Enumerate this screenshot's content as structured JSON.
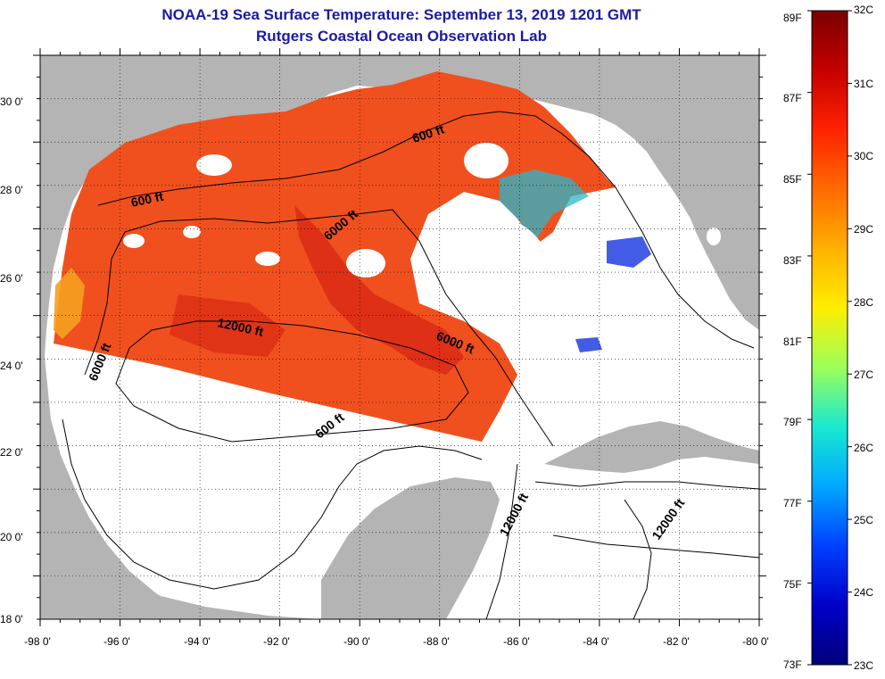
{
  "title": {
    "line1": "NOAA-19 Sea Surface Temperature:  September 13, 2019 1201 GMT",
    "line2": "Rutgers Coastal Ocean Observation Lab"
  },
  "axes": {
    "lon_ticks": [
      "-98 0'",
      "-96 0'",
      "-94 0'",
      "-92 0'",
      "-90 0'",
      "-88 0'",
      "-86 0'",
      "-84 0'",
      "-82 0'",
      "-80 0'"
    ],
    "lat_ticks": [
      "30 0'",
      "28 0'",
      "26 0'",
      "24 0'",
      "22 0'",
      "20 0'",
      "18 0'"
    ]
  },
  "contour_labels": [
    "600 ft",
    "600 ft",
    "600 ft",
    "6000 ft",
    "6000 ft",
    "6000 ft",
    "12000 ft",
    "12000 ft",
    "12000 ft"
  ],
  "colorbar": {
    "fahrenheit": [
      "89F",
      "87F",
      "85F",
      "83F",
      "81F",
      "79F",
      "77F",
      "75F",
      "73F"
    ],
    "celsius": [
      "32C",
      "31C",
      "30C",
      "29C",
      "28C",
      "27C",
      "26C",
      "25C",
      "24C",
      "23C"
    ],
    "colors": [
      "#7a0000",
      "#c40000",
      "#ff2200",
      "#ff6a00",
      "#ffb000",
      "#ffee00",
      "#9cff5a",
      "#19e8d0",
      "#00a8ff",
      "#0040ff",
      "#0000c8",
      "#00007a"
    ]
  },
  "colors": {
    "land": "#b4b4b4",
    "ocean": "#ffffff",
    "title": "#1a1aa8",
    "sst_warm": "#f0501e",
    "sst_hot": "#d82814"
  }
}
